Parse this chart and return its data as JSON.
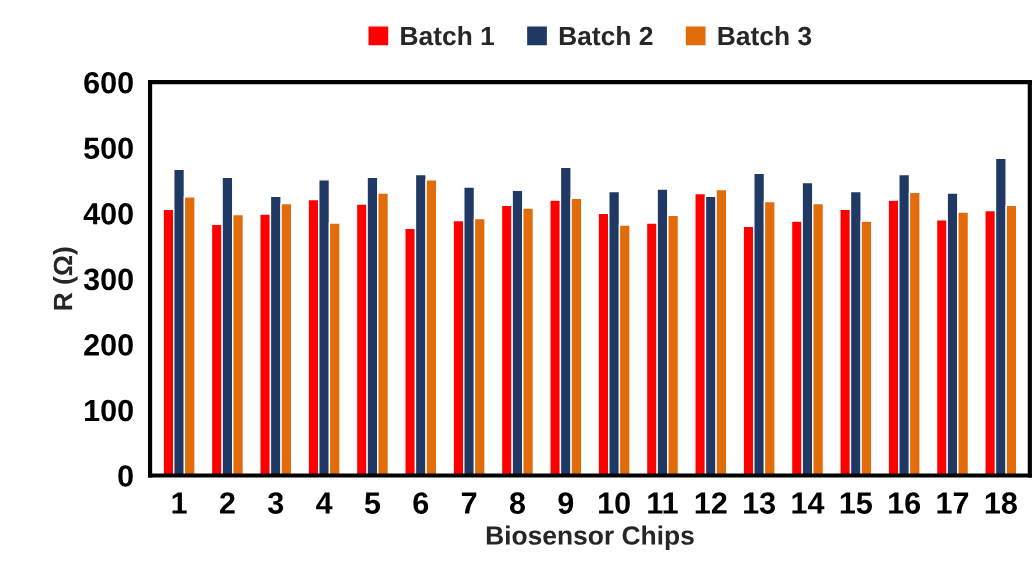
{
  "chart_data": {
    "type": "bar",
    "xlabel": "Biosensor Chips",
    "ylabel": "R (Ω)",
    "categories": [
      "1",
      "2",
      "3",
      "4",
      "5",
      "6",
      "7",
      "8",
      "9",
      "10",
      "11",
      "12",
      "13",
      "14",
      "15",
      "16",
      "17",
      "18"
    ],
    "series": [
      {
        "name": "Batch 1",
        "color": "#ff0000",
        "values": [
          406,
          383,
          399,
          421,
          414,
          377,
          389,
          412,
          420,
          400,
          385,
          430,
          380,
          388,
          406,
          420,
          390,
          404
        ]
      },
      {
        "name": "Batch 2",
        "color": "#1f3864",
        "values": [
          467,
          455,
          426,
          451,
          455,
          459,
          440,
          435,
          470,
          433,
          437,
          426,
          461,
          447,
          433,
          459,
          431,
          484
        ]
      },
      {
        "name": "Batch 3",
        "color": "#e36c0a",
        "values": [
          425,
          398,
          415,
          385,
          431,
          451,
          392,
          408,
          423,
          382,
          397,
          436,
          418,
          415,
          388,
          432,
          402,
          412
        ]
      }
    ],
    "ylim": [
      0,
      600
    ],
    "yticks": [
      0,
      100,
      200,
      300,
      400,
      500,
      600
    ],
    "grid": false,
    "legend": "top"
  }
}
